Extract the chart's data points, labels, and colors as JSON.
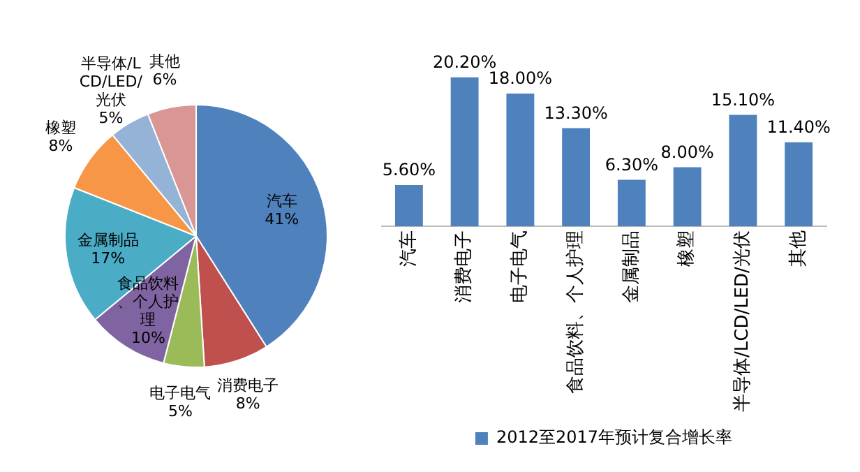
{
  "chart_data": [
    {
      "type": "pie",
      "categories": [
        "汽车",
        "消费电子",
        "电子电气",
        "食品饮料、个人护理",
        "金属制品",
        "橡塑",
        "半导体/LCD/LED/光伏",
        "其他"
      ],
      "values": [
        41,
        8,
        5,
        10,
        17,
        8,
        5,
        6
      ],
      "colors": [
        "#4f81bd",
        "#c0504d",
        "#9bbb59",
        "#8064a2",
        "#4bacc6",
        "#f79646",
        "#95b3d7",
        "#d99694"
      ],
      "value_labels": [
        "41%",
        "8%",
        "5%",
        "10%",
        "17%",
        "8%",
        "5%",
        "6%"
      ],
      "legend": false
    },
    {
      "type": "bar",
      "categories": [
        "汽车",
        "消费电子",
        "电子电气",
        "食品饮料、个人护理",
        "金属制品",
        "橡塑",
        "半导体/LCD/LED/光伏",
        "其他"
      ],
      "series": [
        {
          "name": "2012至2017年预计复合增长率",
          "color": "#4f81bd",
          "values": [
            5.6,
            20.2,
            18,
            13.3,
            6.3,
            8,
            15.1,
            11.4
          ],
          "value_labels": [
            "5.60%",
            "20.20%",
            "18.00%",
            "13.30%",
            "6.30%",
            "8.00%",
            "15.10%",
            "11.40%"
          ]
        }
      ],
      "legend": "bottom",
      "grid": false
    }
  ]
}
